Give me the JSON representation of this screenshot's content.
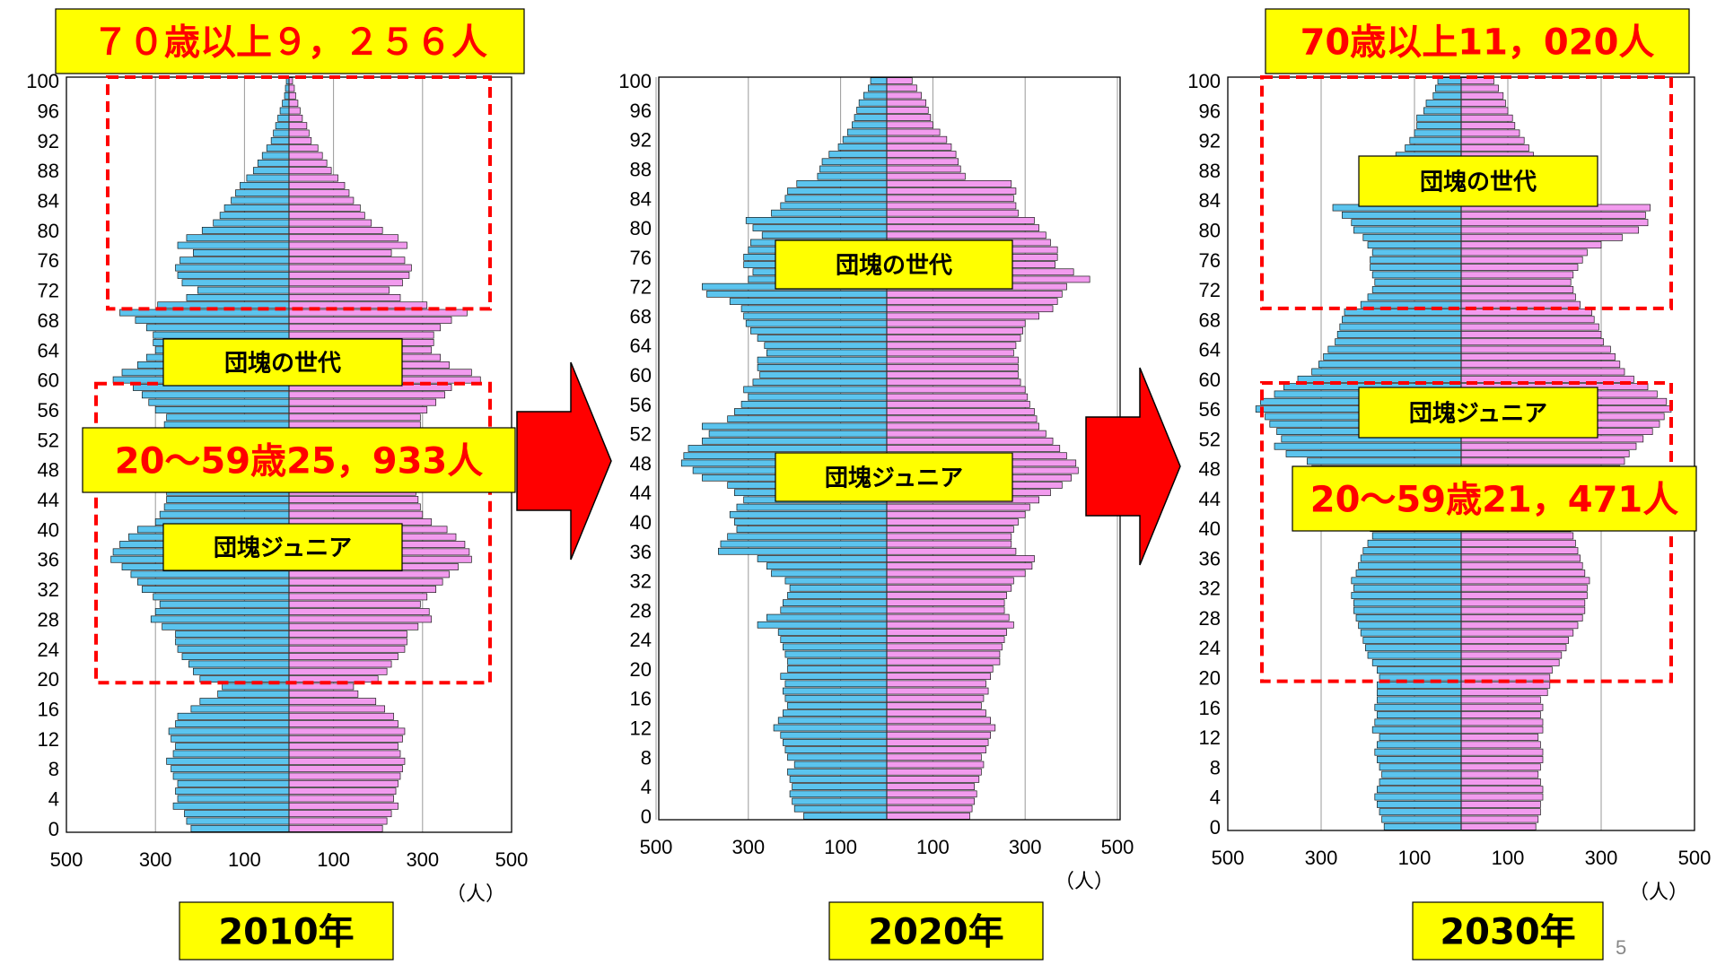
{
  "page": {
    "title_fragment": "",
    "page_number": "5"
  },
  "colors": {
    "male_bar": "#5BC4EE",
    "female_bar": "#F29BEE",
    "label_bg": "#FFFF00",
    "highlight_text": "#FF0000",
    "dash_box": "#FF0000",
    "arrow": "#FF0000",
    "grid": "#999999"
  },
  "axis": {
    "x_ticks": [
      "500",
      "300",
      "100",
      "100",
      "300",
      "500"
    ],
    "unit": "（人）",
    "y_ticks": [
      "0",
      "4",
      "8",
      "12",
      "16",
      "20",
      "24",
      "28",
      "32",
      "36",
      "40",
      "44",
      "48",
      "52",
      "56",
      "60",
      "64",
      "68",
      "72",
      "76",
      "80",
      "84",
      "88",
      "92",
      "96",
      "100"
    ]
  },
  "chart_data": [
    {
      "type": "bar",
      "title": "2010年",
      "xlim": [
        -500,
        500
      ],
      "ylim": [
        0,
        100
      ],
      "categories_note": "age 0-100",
      "male": [
        220,
        230,
        235,
        260,
        250,
        255,
        250,
        260,
        265,
        275,
        260,
        255,
        265,
        270,
        255,
        250,
        220,
        200,
        160,
        150,
        200,
        215,
        225,
        240,
        250,
        255,
        255,
        285,
        310,
        300,
        290,
        305,
        330,
        340,
        355,
        375,
        400,
        395,
        380,
        360,
        340,
        300,
        290,
        280,
        275,
        275,
        270,
        260,
        260,
        260,
        265,
        260,
        265,
        270,
        280,
        275,
        300,
        315,
        330,
        350,
        395,
        375,
        340,
        320,
        300,
        305,
        305,
        320,
        345,
        380,
        295,
        230,
        205,
        240,
        250,
        255,
        245,
        215,
        250,
        230,
        195,
        170,
        155,
        145,
        130,
        120,
        110,
        95,
        80,
        70,
        60,
        50,
        40,
        35,
        30,
        25,
        20,
        15,
        10,
        8,
        6
      ],
      "female": [
        210,
        220,
        230,
        245,
        235,
        240,
        245,
        250,
        255,
        260,
        250,
        245,
        255,
        260,
        245,
        235,
        215,
        195,
        155,
        145,
        200,
        220,
        230,
        245,
        260,
        265,
        265,
        290,
        320,
        315,
        295,
        310,
        330,
        345,
        360,
        380,
        410,
        405,
        395,
        375,
        355,
        320,
        300,
        295,
        290,
        285,
        280,
        270,
        270,
        275,
        280,
        275,
        280,
        285,
        295,
        295,
        310,
        330,
        350,
        365,
        430,
        410,
        360,
        340,
        320,
        325,
        325,
        340,
        365,
        400,
        310,
        250,
        225,
        255,
        270,
        275,
        260,
        230,
        265,
        245,
        210,
        185,
        170,
        160,
        145,
        135,
        125,
        110,
        95,
        85,
        75,
        65,
        50,
        45,
        40,
        30,
        25,
        20,
        15,
        12,
        8
      ],
      "labels": {
        "year": "2010年",
        "annot_top": "７０歳以上９，２５６人",
        "annot_mid": "20～59歳25，933人",
        "dankai": "団塊の世代",
        "junior": "団塊ジュニア"
      }
    },
    {
      "type": "bar",
      "title": "2020年",
      "xlim": [
        -500,
        500
      ],
      "ylim": [
        0,
        100
      ],
      "male": [
        180,
        200,
        205,
        210,
        205,
        210,
        215,
        200,
        215,
        220,
        225,
        230,
        245,
        235,
        225,
        215,
        220,
        225,
        220,
        230,
        215,
        215,
        220,
        225,
        230,
        235,
        280,
        260,
        230,
        225,
        215,
        210,
        220,
        250,
        260,
        280,
        365,
        360,
        345,
        325,
        330,
        340,
        325,
        310,
        330,
        345,
        400,
        420,
        445,
        440,
        430,
        400,
        385,
        400,
        345,
        330,
        315,
        300,
        310,
        290,
        275,
        280,
        280,
        260,
        265,
        280,
        295,
        305,
        310,
        315,
        340,
        390,
        400,
        300,
        290,
        310,
        310,
        300,
        295,
        270,
        290,
        305,
        250,
        230,
        220,
        215,
        195,
        150,
        145,
        140,
        125,
        105,
        95,
        85,
        75,
        70,
        65,
        60,
        50,
        40,
        35
      ],
      "female": [
        180,
        185,
        190,
        195,
        190,
        200,
        205,
        210,
        205,
        215,
        220,
        225,
        235,
        225,
        215,
        205,
        210,
        220,
        215,
        225,
        230,
        245,
        245,
        250,
        255,
        260,
        275,
        265,
        255,
        255,
        260,
        270,
        275,
        300,
        315,
        320,
        280,
        270,
        270,
        275,
        285,
        300,
        310,
        330,
        355,
        380,
        400,
        415,
        410,
        390,
        375,
        360,
        345,
        330,
        325,
        320,
        310,
        305,
        300,
        290,
        285,
        285,
        285,
        275,
        280,
        290,
        295,
        300,
        330,
        360,
        370,
        380,
        390,
        440,
        405,
        365,
        370,
        370,
        355,
        345,
        330,
        320,
        285,
        280,
        275,
        280,
        270,
        170,
        160,
        155,
        150,
        140,
        130,
        115,
        100,
        95,
        90,
        85,
        75,
        65,
        55
      ],
      "labels": {
        "year": "2020年",
        "dankai": "団塊の世代",
        "junior": "団塊ジュニア"
      }
    },
    {
      "type": "bar",
      "title": "2030年",
      "xlim": [
        -500,
        500
      ],
      "ylim": [
        0,
        100
      ],
      "male": [
        165,
        170,
        175,
        180,
        185,
        180,
        175,
        170,
        175,
        180,
        185,
        180,
        175,
        190,
        185,
        180,
        185,
        180,
        180,
        180,
        175,
        180,
        190,
        200,
        205,
        210,
        215,
        220,
        225,
        230,
        230,
        235,
        230,
        235,
        225,
        220,
        215,
        210,
        200,
        190,
        195,
        210,
        225,
        240,
        260,
        290,
        300,
        305,
        320,
        330,
        375,
        400,
        385,
        395,
        410,
        420,
        440,
        430,
        400,
        380,
        350,
        320,
        305,
        295,
        285,
        270,
        265,
        260,
        255,
        250,
        215,
        200,
        190,
        185,
        190,
        195,
        195,
        190,
        200,
        210,
        230,
        235,
        255,
        275,
        200,
        180,
        175,
        160,
        150,
        145,
        140,
        120,
        110,
        100,
        95,
        95,
        80,
        75,
        60,
        55,
        50
      ],
      "female": [
        160,
        165,
        170,
        170,
        175,
        175,
        170,
        165,
        170,
        175,
        175,
        170,
        165,
        175,
        175,
        170,
        175,
        170,
        185,
        190,
        190,
        195,
        210,
        215,
        225,
        230,
        240,
        250,
        260,
        265,
        265,
        270,
        270,
        275,
        265,
        260,
        255,
        250,
        245,
        240,
        235,
        240,
        255,
        270,
        285,
        300,
        315,
        330,
        340,
        350,
        360,
        375,
        390,
        410,
        425,
        435,
        450,
        440,
        420,
        400,
        370,
        350,
        340,
        330,
        320,
        305,
        300,
        295,
        285,
        280,
        255,
        245,
        240,
        235,
        240,
        250,
        260,
        270,
        300,
        345,
        380,
        400,
        395,
        405,
        200,
        190,
        185,
        175,
        165,
        160,
        155,
        145,
        135,
        125,
        115,
        110,
        100,
        95,
        90,
        80,
        70
      ],
      "labels": {
        "year": "2030年",
        "annot_top": "70歳以上11，020人",
        "annot_mid": "20～59歳21，471人",
        "dankai": "団塊の世代",
        "junior": "団塊ジュニア"
      }
    }
  ]
}
